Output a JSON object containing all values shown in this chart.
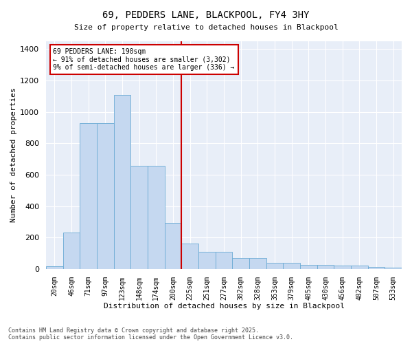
{
  "title": "69, PEDDERS LANE, BLACKPOOL, FY4 3HY",
  "subtitle": "Size of property relative to detached houses in Blackpool",
  "xlabel": "Distribution of detached houses by size in Blackpool",
  "ylabel": "Number of detached properties",
  "footer": "Contains HM Land Registry data © Crown copyright and database right 2025.\nContains public sector information licensed under the Open Government Licence v3.0.",
  "bar_color": "#c5d8f0",
  "bar_edge_color": "#6aaad4",
  "background_color": "#e8eef8",
  "grid_color": "#ffffff",
  "fig_background": "#ffffff",
  "categories": [
    "20sqm",
    "46sqm",
    "71sqm",
    "97sqm",
    "123sqm",
    "148sqm",
    "174sqm",
    "200sqm",
    "225sqm",
    "251sqm",
    "277sqm",
    "302sqm",
    "328sqm",
    "353sqm",
    "379sqm",
    "405sqm",
    "430sqm",
    "456sqm",
    "482sqm",
    "507sqm",
    "533sqm"
  ],
  "bar_values": [
    15,
    230,
    930,
    930,
    1110,
    655,
    655,
    295,
    160,
    110,
    110,
    70,
    70,
    40,
    40,
    25,
    25,
    20,
    20,
    14,
    8
  ],
  "vline_x": 7.5,
  "vline_color": "#cc0000",
  "annotation_text": "69 PEDDERS LANE: 190sqm\n← 91% of detached houses are smaller (3,302)\n9% of semi-detached houses are larger (336) →",
  "annotation_box_color": "#cc0000",
  "ylim": [
    0,
    1450
  ],
  "yticks": [
    0,
    200,
    400,
    600,
    800,
    1000,
    1200,
    1400
  ]
}
